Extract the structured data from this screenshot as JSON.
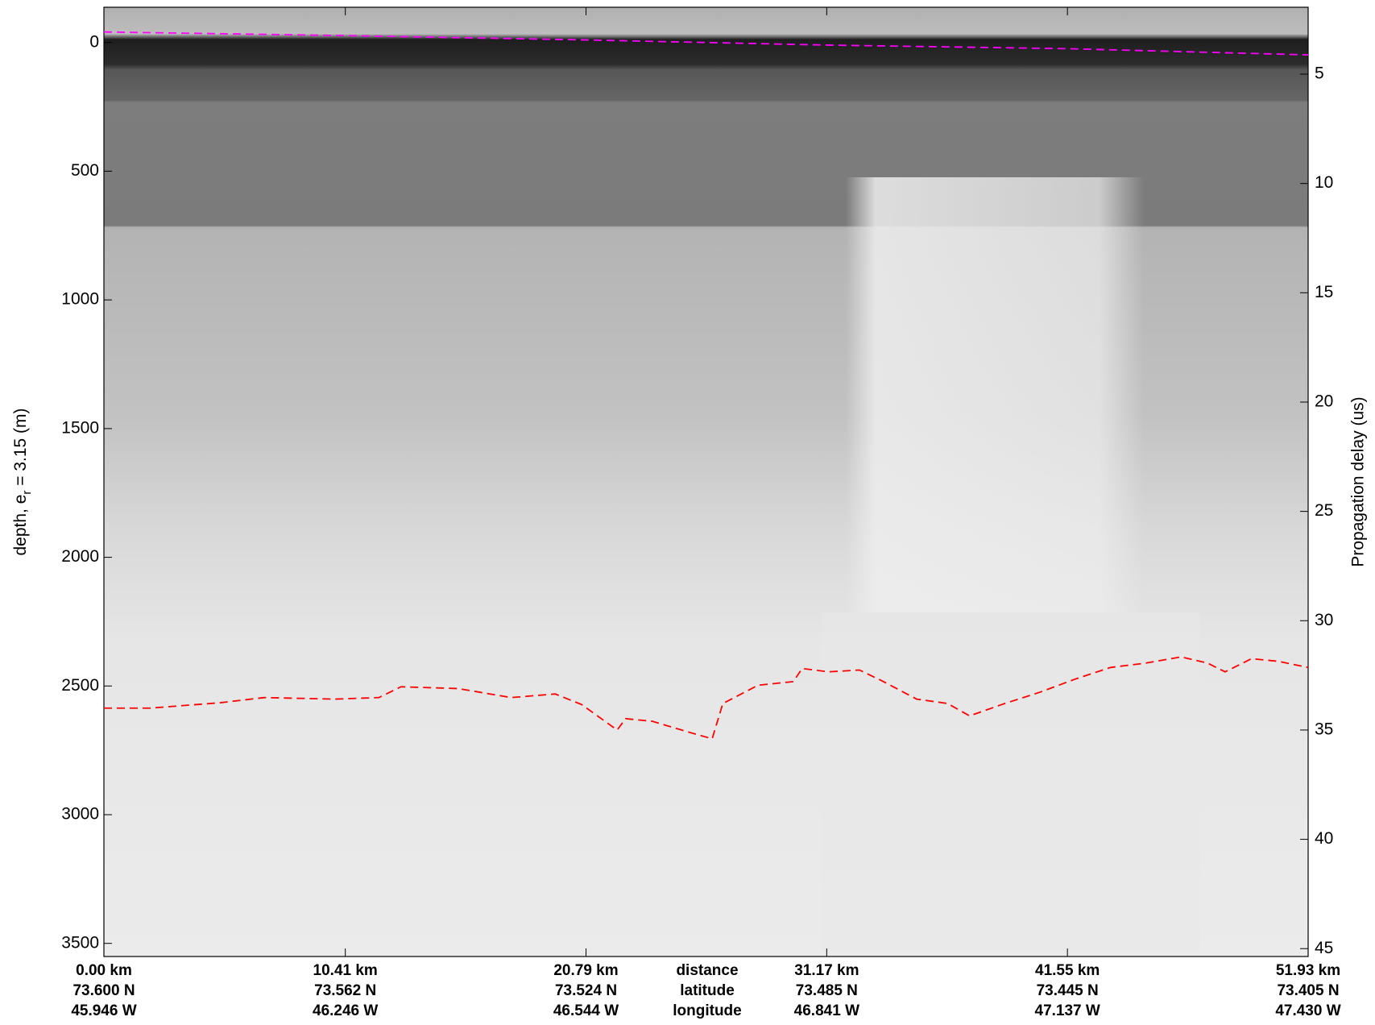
{
  "chart_data": {
    "type": "line",
    "ylabel_parts": [
      "depth, e",
      "r",
      " = 3.15 (m)"
    ],
    "y2label": "Propagation delay (us)",
    "xlim": [
      0,
      51.93
    ],
    "xticks": [
      {
        "value": 0,
        "label": "0.00 km"
      },
      {
        "value": 10.41,
        "label": "10.41 km"
      },
      {
        "value": 20.79,
        "label": "20.79 km"
      },
      {
        "value": 31.17,
        "label": "31.17 km"
      },
      {
        "value": 41.55,
        "label": "41.55 km"
      },
      {
        "value": 51.93,
        "label": "51.93 km"
      }
    ],
    "latitudes": [
      "73.600 N",
      "73.562 N",
      "73.524 N",
      "73.485 N",
      "73.445 N",
      "73.405 N"
    ],
    "longitudes": [
      "45.946 W",
      "46.246 W",
      "46.544 W",
      "46.841 W",
      "47.137 W",
      "47.430 W"
    ],
    "row_labels": [
      "distance",
      "latitude",
      "longitude"
    ],
    "ylim": [
      -137,
      3551
    ],
    "yticks": [
      0,
      500,
      1000,
      1500,
      2000,
      2500,
      3000,
      3500
    ],
    "y2lim": [
      1.94,
      45.36
    ],
    "y2ticks": [
      5,
      10,
      15,
      20,
      25,
      30,
      35,
      40,
      45
    ],
    "series": [
      {
        "name": "surface",
        "color": "#ff00ff",
        "x": [
          0,
          10.4,
          20.8,
          31.2,
          41.6,
          51.93
        ],
        "values": [
          -41,
          -27,
          -10,
          10,
          24,
          48
        ]
      },
      {
        "name": "bed",
        "color": "#ff0000",
        "x": [
          0,
          1.98,
          5.02,
          6.92,
          9.96,
          11.86,
          12.81,
          15.28,
          17.56,
          19.46,
          20.6,
          22.13,
          22.5,
          23.64,
          25.55,
          26.23,
          26.69,
          28.21,
          29.73,
          30.11,
          31.25,
          32.58,
          33.53,
          35.05,
          36.38,
          37.33,
          38.85,
          40.37,
          41.89,
          43.41,
          44.93,
          46.45,
          47.59,
          48.35,
          49.49,
          50.63,
          51.93
        ],
        "values": [
          2586,
          2586,
          2565,
          2545,
          2551,
          2545,
          2503,
          2510,
          2545,
          2531,
          2572,
          2671,
          2627,
          2637,
          2688,
          2705,
          2568,
          2497,
          2483,
          2432,
          2445,
          2438,
          2479,
          2551,
          2568,
          2616,
          2568,
          2524,
          2473,
          2428,
          2411,
          2387,
          2411,
          2445,
          2394,
          2404,
          2428
        ]
      }
    ]
  }
}
